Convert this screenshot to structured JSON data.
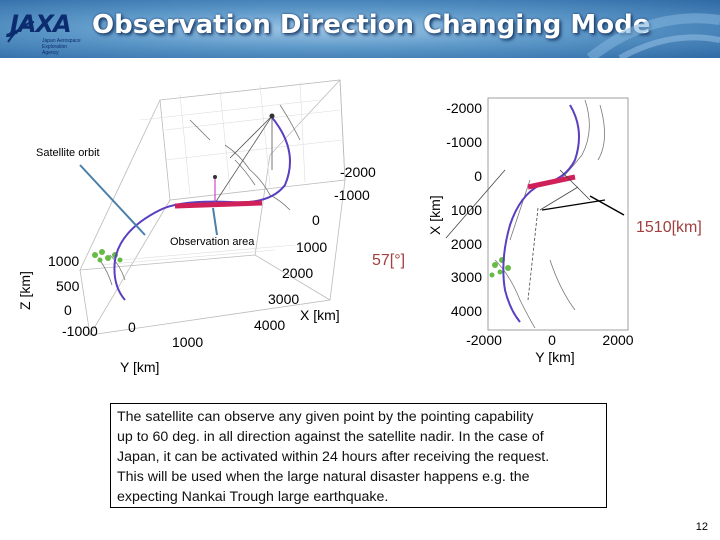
{
  "header": {
    "logo": "JAXA",
    "logo_sub": "Japan Aerospace Exploration Agency",
    "title": "Observation Direction Changing Mode"
  },
  "left_plot": {
    "satellite_orbit_label": "Satellite orbit",
    "observation_area_label": "Observation area",
    "z_axis_label": "Z [km]",
    "z_ticks": [
      "1000",
      "500",
      "0"
    ],
    "y_axis_label": "Y [km]",
    "y_ticks": [
      "-1000",
      "0",
      "1000"
    ],
    "x_axis_label": "X [km]",
    "x_ticks": [
      "-2000",
      "-1000",
      "0",
      "1000",
      "2000",
      "3000",
      "4000"
    ]
  },
  "right_plot": {
    "angle_label": "57[°]",
    "distance_label": "1510[km]",
    "x_axis_label": "X [km]",
    "x_ticks": [
      "-2000",
      "-1000",
      "0",
      "1000",
      "2000",
      "3000",
      "4000"
    ],
    "y_axis_label": "Y [km]",
    "y_ticks": [
      "-2000",
      "0",
      "2000"
    ]
  },
  "description": {
    "lines": [
      "The satellite can observe any given point by the pointing capability",
      "up to 60 deg. in all direction against the satellite nadir. In the case of",
      "Japan, it can be activated within 24 hours after receiving the request.",
      "This will be used when the large natural disaster happens e.g. the",
      "expecting Nankai Trough large earthquake."
    ]
  },
  "footer": {
    "page_number": "12"
  },
  "colors": {
    "orbit": "#5a3fc0",
    "observation": "#d0205a",
    "header_text": "#ffffff",
    "logo": "#0b2c6e"
  }
}
